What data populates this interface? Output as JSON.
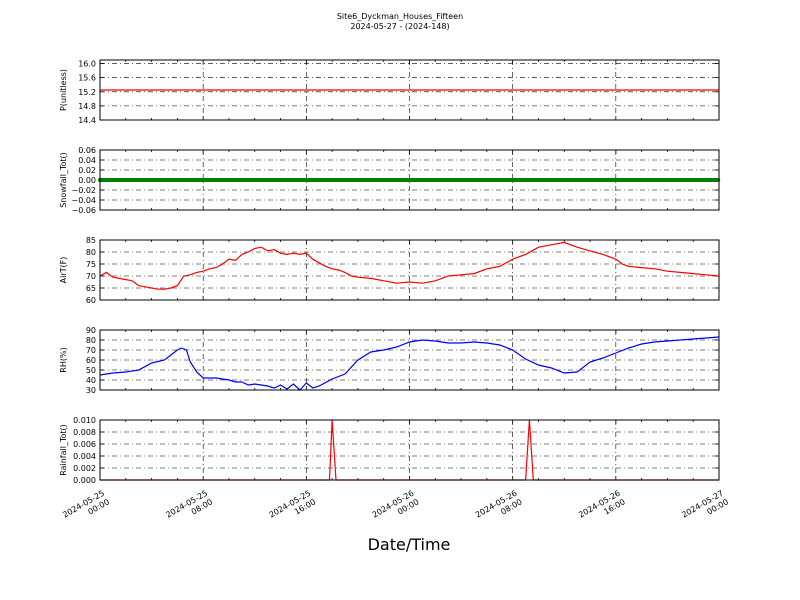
{
  "figure": {
    "title_line1": "Site6_Dyckman_Houses_Fifteen",
    "title_line2": "2024-05-27 - (2024-148)",
    "xlabel": "Date/Time",
    "x_tick_labels": [
      [
        "2024-05-25",
        "00:00"
      ],
      [
        "2024-05-25",
        "08:00"
      ],
      [
        "2024-05-25",
        "16:00"
      ],
      [
        "2024-05-26",
        "00:00"
      ],
      [
        "2024-05-26",
        "08:00"
      ],
      [
        "2024-05-26",
        "16:00"
      ],
      [
        "2024-05-27",
        "00:00"
      ]
    ]
  },
  "chart_data": [
    {
      "type": "line",
      "ylabel": "P(unitless)",
      "ylim": [
        14.4,
        16.1
      ],
      "yticks": [
        "14.4",
        "14.8",
        "15.2",
        "15.6",
        "16.0"
      ],
      "ytick_values": [
        14.4,
        14.8,
        15.2,
        15.6,
        16.0
      ],
      "grid": true,
      "x_unit": "hours since 2024-05-25 00:00",
      "xlim": [
        0,
        48
      ],
      "color": "#ff0000",
      "x": [
        0,
        48
      ],
      "y": [
        15.25,
        15.25
      ]
    },
    {
      "type": "line",
      "ylabel": "Snowfall_Tot()",
      "ylim": [
        -0.06,
        0.06
      ],
      "yticks": [
        "−0.06",
        "−0.04",
        "−0.02",
        "0.00",
        "0.02",
        "0.04",
        "0.06"
      ],
      "ytick_values": [
        -0.06,
        -0.04,
        -0.02,
        0.0,
        0.02,
        0.04,
        0.06
      ],
      "grid": true,
      "xlim": [
        0,
        48
      ],
      "color": "#008000",
      "markers": true,
      "x": [
        0,
        48
      ],
      "y": [
        0,
        0
      ]
    },
    {
      "type": "line",
      "ylabel": "AirT(F)",
      "ylim": [
        60,
        85
      ],
      "yticks": [
        "60",
        "65",
        "70",
        "75",
        "80",
        "85"
      ],
      "ytick_values": [
        60,
        65,
        70,
        75,
        80,
        85
      ],
      "grid": true,
      "xlim": [
        0,
        48
      ],
      "color": "#ff0000",
      "x": [
        0,
        0.5,
        1,
        1.5,
        2,
        2.5,
        3,
        3.5,
        4,
        4.5,
        5,
        5.5,
        6,
        6.5,
        7,
        7.5,
        8,
        8.5,
        9,
        9.5,
        10,
        10.5,
        11,
        11.5,
        12,
        12.5,
        13,
        13.5,
        14,
        14.5,
        15,
        15.5,
        16,
        16.5,
        17,
        17.5,
        18,
        18.5,
        19,
        19.5,
        20,
        21,
        22,
        23,
        24,
        25,
        26,
        27,
        28,
        29,
        30,
        31,
        32,
        33,
        34,
        35,
        36,
        37,
        38,
        39,
        40,
        40.5,
        41,
        42,
        43,
        44,
        45,
        46,
        47,
        48
      ],
      "y": [
        70,
        71.5,
        69.5,
        69,
        68.5,
        68,
        66,
        65.5,
        65,
        64.5,
        64.5,
        65,
        66,
        70,
        70.5,
        71.5,
        72,
        73,
        73.5,
        75,
        77,
        76.5,
        79,
        80,
        81.5,
        82,
        80.5,
        81,
        79.5,
        79,
        79.5,
        79,
        79.5,
        77,
        75.5,
        74,
        73,
        72.5,
        71.5,
        70,
        69.5,
        69,
        68,
        67,
        67.5,
        67,
        68,
        70,
        70.5,
        71,
        73,
        74,
        77,
        79,
        82,
        83,
        84,
        82,
        80.5,
        79,
        77,
        75,
        74,
        73.5,
        73,
        72,
        71.5,
        71,
        70.5,
        70
      ]
    },
    {
      "type": "line",
      "ylabel": "RH(%)",
      "ylim": [
        30,
        90
      ],
      "yticks": [
        "30",
        "40",
        "50",
        "60",
        "70",
        "80",
        "90"
      ],
      "ytick_values": [
        30,
        40,
        50,
        60,
        70,
        80,
        90
      ],
      "grid": true,
      "xlim": [
        0,
        48
      ],
      "color": "#0000ff",
      "x": [
        0,
        1,
        2,
        3,
        4,
        5,
        5.5,
        6,
        6.3,
        6.7,
        7,
        7.5,
        8,
        9,
        10,
        10.5,
        11,
        11.5,
        12,
        13,
        13.5,
        14,
        14.5,
        15,
        15.5,
        16,
        16.5,
        17,
        18,
        19,
        20,
        21,
        22,
        23,
        24,
        25,
        26,
        27,
        28,
        29,
        30,
        31,
        32,
        33,
        34,
        35,
        36,
        37,
        38,
        39,
        40,
        41,
        42,
        43,
        44,
        45,
        46,
        47,
        48
      ],
      "y": [
        45,
        47,
        48,
        50,
        57,
        60,
        65,
        70,
        72,
        70,
        58,
        48,
        42,
        42,
        40,
        38,
        38,
        35,
        36,
        34,
        32,
        35,
        31,
        36,
        30,
        37,
        32,
        34,
        41,
        46,
        60,
        68,
        70,
        73,
        78,
        80,
        79,
        77,
        77,
        78,
        77,
        75,
        70,
        61,
        55,
        52,
        47,
        48,
        58,
        62,
        67,
        72,
        76,
        78,
        79,
        80,
        81,
        82,
        83
      ]
    },
    {
      "type": "line",
      "ylabel": "Rainfall_Tot()",
      "ylim": [
        0,
        0.01
      ],
      "yticks": [
        "0.000",
        "0.002",
        "0.004",
        "0.006",
        "0.008",
        "0.010"
      ],
      "ytick_values": [
        0,
        0.002,
        0.004,
        0.006,
        0.008,
        0.01
      ],
      "grid": true,
      "xlim": [
        0,
        48
      ],
      "color": "#ff0000",
      "x": [
        0,
        17.8,
        18,
        18.3,
        33,
        33.3,
        33.6,
        48
      ],
      "y": [
        0,
        0,
        0.01,
        0,
        0,
        0.01,
        0,
        0
      ]
    }
  ]
}
